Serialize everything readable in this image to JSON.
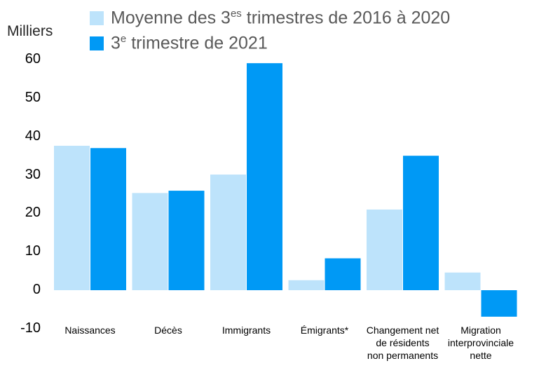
{
  "legend": {
    "series1_pre": "Moyenne des 3",
    "series1_sup": "es",
    "series1_post": " trimestres de 2016 à 2020",
    "series2_pre": "3",
    "series2_sup": "e",
    "series2_post": " trimestre de 2021"
  },
  "colors": {
    "series1": "#bde3fb",
    "series2": "#0099f5"
  },
  "chart_data": {
    "type": "bar",
    "ylabel": "Milliers",
    "ylim": [
      -10,
      60
    ],
    "yticks": [
      "60",
      "50",
      "40",
      "30",
      "20",
      "10",
      "0",
      "-10"
    ],
    "categories": [
      [
        "Naissances"
      ],
      [
        "Décès"
      ],
      [
        "Immigrants"
      ],
      [
        "Émigrants*"
      ],
      [
        "Changement net",
        "de résidents",
        "non permanents"
      ],
      [
        "Migration",
        "interprovinciale",
        "nette"
      ]
    ],
    "series": [
      {
        "name": "Moyenne des 3es trimestres de 2016 à 2020",
        "values": [
          37.6,
          25.3,
          30.1,
          2.6,
          21.0,
          4.6
        ]
      },
      {
        "name": "3e trimestre de 2021",
        "values": [
          37.0,
          25.9,
          59.1,
          8.3,
          35.0,
          -6.9
        ]
      }
    ]
  }
}
